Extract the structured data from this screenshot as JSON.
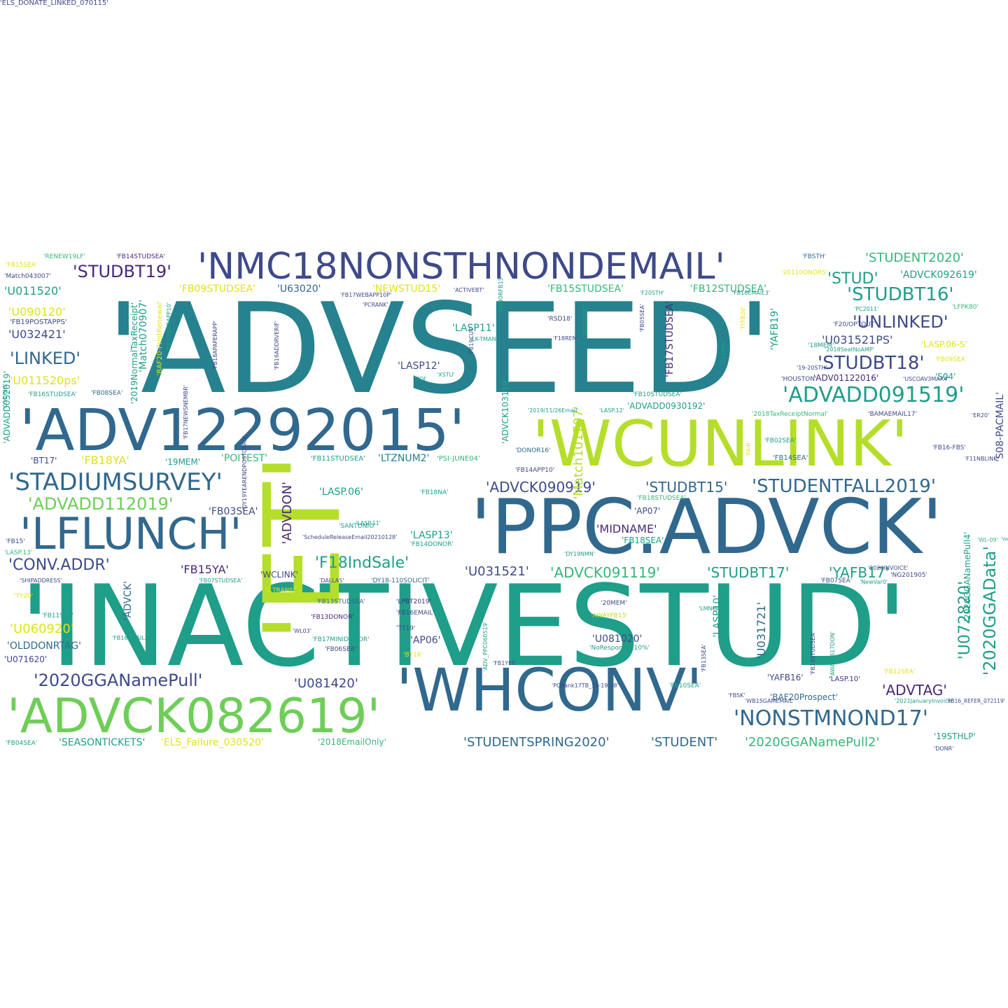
{
  "palette": {
    "dark_purple": "#482878",
    "indigo": "#3e4a89",
    "blue": "#31688e",
    "teal": "#26828e",
    "green_teal": "#1f9e89",
    "green": "#35b779",
    "light_green": "#6ece58",
    "yellow_green": "#b5de2b",
    "yellow": "#e0e31a"
  },
  "words": [
    {
      "text": "'ADVSEED'",
      "color": "teal"
    },
    {
      "text": "'INACTIVESTUD'",
      "color": "green_teal"
    },
    {
      "text": "'PPC.ADVCK'",
      "color": "blue"
    },
    {
      "text": "'ET'",
      "color": "yellow_green"
    },
    {
      "text": "'WCUNLINK'",
      "color": "yellow_green"
    },
    {
      "text": "'ADV12292015'",
      "color": "blue"
    },
    {
      "text": "'WHCONV'",
      "color": "blue"
    },
    {
      "text": "'ADVCK082619'",
      "color": "light_green"
    },
    {
      "text": "'LFLUNCH'",
      "color": "blue"
    },
    {
      "text": "'NMC18NONSTHNONDEMAIL'",
      "color": "indigo"
    },
    {
      "text": "'STADIUMSURVEY'",
      "color": "blue"
    },
    {
      "text": "'NONSTMNOND17'",
      "color": "blue"
    },
    {
      "text": "'ADVADD091519'",
      "color": "green_teal"
    },
    {
      "text": "'STUDENTFALL2019'",
      "color": "blue"
    },
    {
      "text": "'2020GGANamePull'",
      "color": "indigo"
    },
    {
      "text": "'ADVADD112019'",
      "color": "light_green"
    },
    {
      "text": "'STUDBT19'",
      "color": "dark_purple"
    },
    {
      "text": "'STUDBT16'",
      "color": "green_teal"
    },
    {
      "text": "'STUDBT18'",
      "color": "indigo"
    },
    {
      "text": "'UNLINKED'",
      "color": "indigo"
    },
    {
      "text": "'LINKED'",
      "color": "blue"
    },
    {
      "text": "'CONV.ADDR'",
      "color": "indigo"
    },
    {
      "text": "'F18IndSale'",
      "color": "green_teal"
    },
    {
      "text": "'STUD'",
      "color": "green_teal"
    },
    {
      "text": "'ADVCK090919'",
      "color": "indigo"
    },
    {
      "text": "'STUDBT15'",
      "color": "blue"
    },
    {
      "text": "'ADVCK091119'",
      "color": "green"
    },
    {
      "text": "'STUDBT17'",
      "color": "green_teal"
    },
    {
      "text": "'YAFB17'",
      "color": "green_teal"
    },
    {
      "text": "'U031521'",
      "color": "indigo"
    },
    {
      "text": "'2020GGAData'",
      "color": "green_teal"
    },
    {
      "text": "'U072820'",
      "color": "green_teal"
    },
    {
      "text": "'ADVTAG'",
      "color": "dark_purple"
    },
    {
      "text": "'U081420'",
      "color": "indigo"
    },
    {
      "text": "'STUDENTSPRING2020'",
      "color": "blue"
    },
    {
      "text": "'STUDENT'",
      "color": "blue"
    },
    {
      "text": "'2020GGANamePull2'",
      "color": "green"
    },
    {
      "text": "'STUDENT2020'",
      "color": "green"
    },
    {
      "text": "'ADVCK092619'",
      "color": "green_teal"
    },
    {
      "text": "'U011520'",
      "color": "green_teal"
    },
    {
      "text": "'U090120'",
      "color": "yellow"
    },
    {
      "text": "'U032421'",
      "color": "indigo"
    },
    {
      "text": "'U011520ps'",
      "color": "yellow"
    },
    {
      "text": "'U031521PS'",
      "color": "indigo"
    },
    {
      "text": "'LASP11'",
      "color": "green_teal"
    },
    {
      "text": "'LASP12'",
      "color": "indigo"
    },
    {
      "text": "'LASP13'",
      "color": "green_teal"
    },
    {
      "text": "'LASP10'",
      "color": "green_teal"
    },
    {
      "text": "'LASP.06'",
      "color": "green_teal"
    },
    {
      "text": "'LASP.06-S'",
      "color": "yellow"
    },
    {
      "text": "'FB18YA'",
      "color": "yellow"
    },
    {
      "text": "'FB15YA'",
      "color": "dark_purple"
    },
    {
      "text": "'FB03SEA'",
      "color": "indigo"
    },
    {
      "text": "'FB18SEA'",
      "color": "green_teal"
    },
    {
      "text": "'FB14SEA'",
      "color": "blue"
    },
    {
      "text": "'FB09STUDSEA'",
      "color": "yellow"
    },
    {
      "text": "'FB15STUDSEA'",
      "color": "green"
    },
    {
      "text": "'FB12STUDSEA'",
      "color": "green"
    },
    {
      "text": "'FB17STUDSEA'",
      "color": "dark_purple"
    },
    {
      "text": "'U63020'",
      "color": "blue"
    },
    {
      "text": "'NEWSTUD15'",
      "color": "yellow"
    },
    {
      "text": "'LTZNUM2'",
      "color": "teal"
    },
    {
      "text": "'POITEST'",
      "color": "green"
    },
    {
      "text": "'19MEM'",
      "color": "green_teal"
    },
    {
      "text": "'BT17'",
      "color": "indigo"
    },
    {
      "text": "'MIDNAME'",
      "color": "dark_purple"
    },
    {
      "text": "'AP07'",
      "color": "indigo"
    },
    {
      "text": "'AP06'",
      "color": "indigo"
    },
    {
      "text": "'WCLINK'",
      "color": "indigo"
    },
    {
      "text": "'U060920'",
      "color": "yellow"
    },
    {
      "text": "'OLDDONRTAG'",
      "color": "blue"
    },
    {
      "text": "'U071620'",
      "color": "indigo"
    },
    {
      "text": "'U081020'",
      "color": "indigo"
    },
    {
      "text": "'U031721'",
      "color": "blue"
    },
    {
      "text": "'YAFB16'",
      "color": "indigo"
    },
    {
      "text": "'YAFB19'",
      "color": "green_teal"
    },
    {
      "text": "'SEASONTICKETS'",
      "color": "green_teal"
    },
    {
      "text": "'ELS_Failure_030520'",
      "color": "yellow"
    },
    {
      "text": "'2018EmailOnly'",
      "color": "green"
    },
    {
      "text": "'19STHLP'",
      "color": "green_teal"
    },
    {
      "text": "'ADVDON'",
      "color": "dark_purple"
    },
    {
      "text": "'Match101707'",
      "color": "yellow_green"
    },
    {
      "text": "'ADVCK103119'",
      "color": "green_teal"
    },
    {
      "text": "'Match070907'",
      "color": "green_teal"
    },
    {
      "text": "'ADVADD052019'",
      "color": "green_teal"
    },
    {
      "text": "'ADVADD0930192'",
      "color": "green_teal"
    },
    {
      "text": "'ADV01122016'",
      "color": "dark_purple"
    },
    {
      "text": "'S04'",
      "color": "green_teal"
    },
    {
      "text": "'S08-PACMAIL'",
      "color": "indigo"
    },
    {
      "text": "'2020GGANamePull4'",
      "color": "green_teal"
    },
    {
      "text": "'BAF20Prospect'",
      "color": "blue"
    },
    {
      "text": "'ADVCK'",
      "color": "blue"
    },
    {
      "text": "'LASP.10'",
      "color": "dark_purple"
    },
    {
      "text": "'FB19POSTAPPS'",
      "color": "indigo"
    },
    {
      "text": "'2019NormalTaxReceipt'",
      "color": "green_teal"
    },
    {
      "text": "'BAF20-PrintRenewal'",
      "color": "yellow"
    },
    {
      "text": "'FB16STUDSEA'",
      "color": "green_teal"
    },
    {
      "text": "'FB08SEA'",
      "color": "blue"
    },
    {
      "text": "'FB11STUDSEA'",
      "color": "green_teal"
    },
    {
      "text": "'PSI-JUNE04'",
      "color": "green"
    },
    {
      "text": "'FB14APP10'",
      "color": "indigo"
    },
    {
      "text": "'DONOR16'",
      "color": "blue"
    },
    {
      "text": "'FB18NA'",
      "color": "green_teal"
    },
    {
      "text": "'SANTONIO'",
      "color": "green_teal"
    },
    {
      "text": "'FB14DONOR'",
      "color": "green_teal"
    },
    {
      "text": "'FB18STUDSEA'",
      "color": "green"
    },
    {
      "text": "'DY18-110SOLICIT'",
      "color": "blue"
    },
    {
      "text": "'FB13STUDSEA'",
      "color": "blue"
    },
    {
      "text": "'FB13DONOR'",
      "color": "dark_purple"
    },
    {
      "text": "'FB17MINIDONOR'",
      "color": "green_teal"
    },
    {
      "text": "'LPBT2019'",
      "color": "dark_purple"
    },
    {
      "text": "'FB16EMAIL'",
      "color": "indigo"
    },
    {
      "text": "'TY19'",
      "color": "indigo"
    },
    {
      "text": "'20MEM'",
      "color": "indigo"
    },
    {
      "text": "'AWAYFB15'",
      "color": "yellow_green"
    },
    {
      "text": "'NoResponse110%'",
      "color": "green_teal"
    },
    {
      "text": "'2018TaxReceiptNormal'",
      "color": "green"
    },
    {
      "text": "'BAMAEMAIL17'",
      "color": "indigo"
    },
    {
      "text": "'FB02SEA'",
      "color": "green_teal"
    },
    {
      "text": "'FB16-FBS'",
      "color": "indigo"
    },
    {
      "text": "'FB15SEA'",
      "color": "yellow"
    },
    {
      "text": "'RENEW19LF'",
      "color": "green"
    },
    {
      "text": "'FB14STUDSEA'",
      "color": "dark_purple"
    },
    {
      "text": "'FBSTH'",
      "color": "blue"
    },
    {
      "text": "'Match043007'",
      "color": "indigo"
    },
    {
      "text": "'20110ONORS'",
      "color": "yellow"
    },
    {
      "text": "'ACTIVEBT'",
      "color": "indigo"
    },
    {
      "text": "'RSD18'",
      "color": "indigo"
    },
    {
      "text": "'HOUSTON'",
      "color": "indigo"
    },
    {
      "text": "'FB09SEA'",
      "color": "yellow"
    },
    {
      "text": "'18MEM'",
      "color": "green_teal"
    },
    {
      "text": "'F20/OPTOUT'",
      "color": "indigo"
    },
    {
      "text": "'LFPK80'",
      "color": "green"
    },
    {
      "text": "'FB15'",
      "color": "indigo"
    },
    {
      "text": "'LASP.13'",
      "color": "green"
    },
    {
      "text": "'TY20'",
      "color": "yellow"
    },
    {
      "text": "'FB11SEA'",
      "color": "green_teal"
    },
    {
      "text": "'FB04SEA'",
      "color": "green_teal"
    },
    {
      "text": "'FB10SEA'",
      "color": "green_teal"
    },
    {
      "text": "'FB12SEA'",
      "color": "yellow"
    },
    {
      "text": "'FB10STUDSEA'",
      "color": "green_teal"
    },
    {
      "text": "'FB07SEA'",
      "color": "indigo"
    },
    {
      "text": "'FB07STUDSEA'",
      "color": "green_teal"
    },
    {
      "text": "'FB16EMAIL2'",
      "color": "green_teal"
    },
    {
      "text": "'FB06SEA'",
      "color": "indigo"
    },
    {
      "text": "'BT16'",
      "color": "yellow"
    },
    {
      "text": "'1.TRANS'",
      "color": "yellow"
    },
    {
      "text": "'DALLAS'",
      "color": "indigo"
    },
    {
      "text": "'SHIPADDRESS'",
      "color": "indigo"
    },
    {
      "text": "'ScheduleReleaseEmail20210128'",
      "color": "indigo"
    },
    {
      "text": "'LASP.11'",
      "color": "green_teal"
    },
    {
      "text": "'DY19NMN'",
      "color": "green_teal"
    },
    {
      "text": "'NG201905'",
      "color": "indigo"
    },
    {
      "text": "'WL-09'",
      "color": "green"
    },
    {
      "text": "'Var0'",
      "color": "green_teal"
    },
    {
      "text": "'NewVar0'",
      "color": "green_teal"
    },
    {
      "text": "'2020INVOICE'",
      "color": "indigo"
    },
    {
      "text": "'LMNINI'",
      "color": "green_teal"
    },
    {
      "text": "'DONR'",
      "color": "indigo"
    },
    {
      "text": "'2021JanuaryInvoice'",
      "color": "green_teal"
    },
    {
      "text": "'FB16_REFER_072119'",
      "color": "indigo"
    },
    {
      "text": "'WB15GAMEMAIL'",
      "color": "indigo"
    },
    {
      "text": "'PCRank17TB_10-19-18'",
      "color": "indigo"
    },
    {
      "text": "'FBSK'",
      "color": "indigo"
    },
    {
      "text": "'FB1YEE'",
      "color": "indigo"
    },
    {
      "text": "'WL03'",
      "color": "indigo"
    },
    {
      "text": "'2019/11/26Email'",
      "color": "green_teal"
    },
    {
      "text": "'LASP.12'",
      "color": "green_teal"
    },
    {
      "text": "'ER20'",
      "color": "indigo"
    },
    {
      "text": "'F11NBLINK'",
      "color": "indigo"
    },
    {
      "text": "'19-20STH'",
      "color": "indigo"
    },
    {
      "text": "'F18REN'",
      "color": "indigo"
    },
    {
      "text": "'LK-TMAN'",
      "color": "green_teal"
    },
    {
      "text": "'XSTU'",
      "color": "green_teal"
    },
    {
      "text": "'POI'",
      "color": "green_teal"
    },
    {
      "text": "'FB19CUT'",
      "color": "indigo"
    },
    {
      "text": "'FB17WEBAPP10P'",
      "color": "indigo"
    },
    {
      "text": "'PCRANK'",
      "color": "indigo"
    },
    {
      "text": "'F20STH'",
      "color": "green_teal"
    },
    {
      "text": "'FB16EMAIL3'",
      "color": "green_teal"
    },
    {
      "text": "'PC2011'",
      "color": "green_teal"
    },
    {
      "text": "'2018SeatNoAMP'",
      "color": "green_teal"
    },
    {
      "text": "'USCOAV3MAX4'",
      "color": "indigo"
    },
    {
      "text": "'TYFB20'",
      "color": "yellow"
    },
    {
      "text": "'FB18APAPERAPP'",
      "color": "indigo"
    },
    {
      "text": "'FB16ADDRVERIF'",
      "color": "indigo"
    },
    {
      "text": "'DONORFB15'",
      "color": "green_teal"
    },
    {
      "text": "'FB13SEA'",
      "color": "indigo"
    },
    {
      "text": "'FB19STUDSEA'",
      "color": "indigo"
    },
    {
      "text": "'AWAYFB17DON'",
      "color": "green_teal"
    },
    {
      "text": "'ADV_PPC060519'",
      "color": "green_teal"
    },
    {
      "text": "'2020IW'",
      "color": "green_teal"
    },
    {
      "text": "'CODING'",
      "color": "green_teal"
    },
    {
      "text": "'FB05SEA'",
      "color": "indigo"
    },
    {
      "text": "'FB17NEWSNEMBR'",
      "color": "indigo"
    },
    {
      "text": "'FB13WEBAPP10'",
      "color": "green_teal"
    },
    {
      "text": "'DY19YEARENDPOSTCARD'",
      "color": "indigo"
    },
    {
      "text": "'FAIR'",
      "color": "yellow"
    },
    {
      "text": "'NG201805'",
      "color": "green_teal"
    },
    {
      "text": "'ELS_DONATE_LINKED_070115'",
      "color": "indigo"
    }
  ]
}
